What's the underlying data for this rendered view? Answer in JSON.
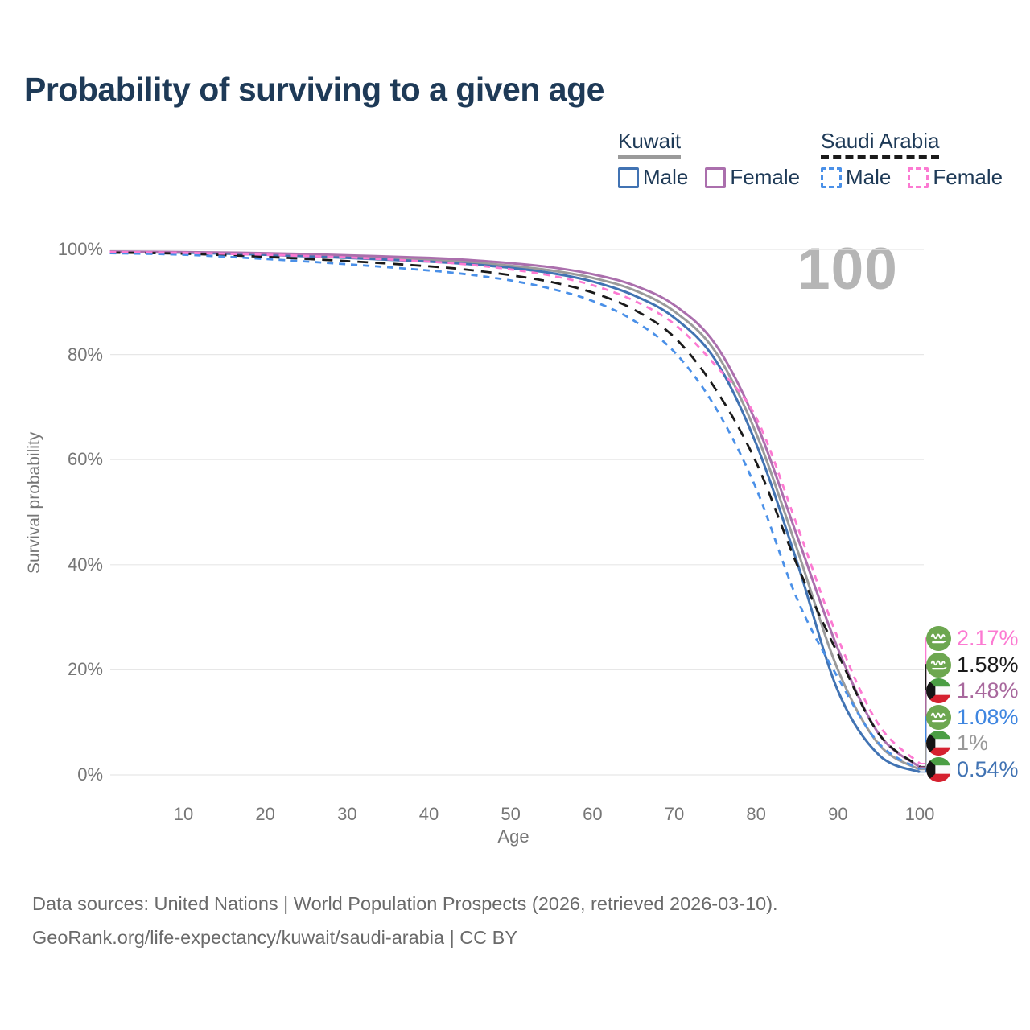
{
  "title": "Probability of surviving to a given age",
  "watermark_age": "100",
  "legend": {
    "groups": [
      {
        "label": "Kuwait",
        "line_style": "solid",
        "line_color": "#9a9a9a",
        "items": [
          {
            "label": "Male",
            "color": "#4173b3"
          },
          {
            "label": "Female",
            "color": "#ab6fad"
          }
        ]
      },
      {
        "label": "Saudi Arabia",
        "line_style": "dashed",
        "line_color": "#1a1a1a",
        "items": [
          {
            "label": "Male",
            "color": "#4a90e8"
          },
          {
            "label": "Female",
            "color": "#fc7ad2"
          }
        ]
      }
    ]
  },
  "chart_data": {
    "type": "line",
    "title": "Probability of surviving to a given age",
    "xlabel": "Age",
    "ylabel": "Survival probability",
    "xlim": [
      1,
      100
    ],
    "ylim": [
      0,
      100
    ],
    "grid": "horizontal",
    "legend_position": "top-right",
    "x_ticks": {
      "values": [
        10,
        20,
        30,
        40,
        50,
        60,
        70,
        80,
        90,
        100
      ],
      "labels": [
        "10",
        "20",
        "30",
        "40",
        "50",
        "60",
        "70",
        "80",
        "90",
        "100"
      ]
    },
    "y_ticks": {
      "values": [
        100,
        80,
        60,
        40,
        20,
        0
      ],
      "labels": [
        "100%",
        "80%",
        "60%",
        "40%",
        "20%",
        "0%"
      ]
    },
    "ages": [
      1,
      10,
      20,
      30,
      40,
      45,
      50,
      55,
      60,
      65,
      70,
      75,
      80,
      85,
      90,
      95,
      100
    ],
    "series": [
      {
        "name": "Kuwait",
        "country": "Kuwait",
        "sex": "Both",
        "color": "#9b9b9b",
        "dash": "solid",
        "end_label": "1%",
        "values": [
          99.55,
          99.45,
          99.15,
          98.65,
          98.0,
          97.6,
          96.9,
          96.0,
          94.6,
          92.3,
          88.2,
          80.6,
          65.0,
          43.0,
          20.0,
          5.8,
          1.0
        ]
      },
      {
        "name": "Kuwait Male",
        "country": "Kuwait",
        "sex": "Male",
        "color": "#4173b3",
        "dash": "solid",
        "end_label": "0.54%",
        "values": [
          99.5,
          99.4,
          99.0,
          98.4,
          97.7,
          97.2,
          96.5,
          95.5,
          93.9,
          91.3,
          87.0,
          79.0,
          63.0,
          40.5,
          16.0,
          3.8,
          0.54
        ]
      },
      {
        "name": "Kuwait Female",
        "country": "Kuwait",
        "sex": "Female",
        "color": "#ab6fad",
        "dash": "solid",
        "end_label": "1.48%",
        "values": [
          99.6,
          99.5,
          99.3,
          98.9,
          98.4,
          98.0,
          97.4,
          96.6,
          95.3,
          93.2,
          89.4,
          82.0,
          67.0,
          45.5,
          24.0,
          7.8,
          1.48
        ]
      },
      {
        "name": "Saudi Arabia",
        "country": "Saudi Arabia",
        "sex": "Both",
        "color": "#1a1a1a",
        "dash": "dashed",
        "end_label": "1.58%",
        "values": [
          99.4,
          99.2,
          98.6,
          97.8,
          96.8,
          96.1,
          95.1,
          93.8,
          91.8,
          88.6,
          83.3,
          73.5,
          59.5,
          40.0,
          23.0,
          7.8,
          1.58
        ]
      },
      {
        "name": "Saudi Arabia Male",
        "country": "Saudi Arabia",
        "sex": "Male",
        "color": "#4a90e8",
        "dash": "dashed",
        "end_label": "1.08%",
        "values": [
          99.3,
          99.0,
          98.2,
          97.2,
          96.0,
          95.2,
          94.1,
          92.5,
          90.2,
          86.5,
          80.5,
          70.0,
          54.5,
          33.5,
          18.5,
          6.0,
          1.08
        ]
      },
      {
        "name": "Saudi Arabia Female",
        "country": "Saudi Arabia",
        "sex": "Female",
        "color": "#fc7ad2",
        "dash": "dashed",
        "end_label": "2.17%",
        "values": [
          99.5,
          99.35,
          99.0,
          98.5,
          97.7,
          97.1,
          96.2,
          95.0,
          93.2,
          90.3,
          85.8,
          78.0,
          68.0,
          47.5,
          26.0,
          9.5,
          2.17
        ]
      }
    ]
  },
  "end_labels": [
    {
      "value": "2.17%",
      "color": "#fc7ad2",
      "flag": "saudi-arabia",
      "series": "Saudi Arabia Female"
    },
    {
      "value": "1.58%",
      "color": "#1a1a1a",
      "flag": "saudi-arabia",
      "series": "Saudi Arabia"
    },
    {
      "value": "1.48%",
      "color": "#a8689d",
      "flag": "kuwait",
      "series": "Kuwait Female"
    },
    {
      "value": "1.08%",
      "color": "#3f86e0",
      "flag": "saudi-arabia",
      "series": "Saudi Arabia Male"
    },
    {
      "value": "1%",
      "color": "#999999",
      "flag": "kuwait",
      "series": "Kuwait"
    },
    {
      "value": "0.54%",
      "color": "#4173b3",
      "flag": "kuwait",
      "series": "Kuwait Male"
    }
  ],
  "footer": {
    "line1": "Data sources: United Nations | World Population Prospects (2026, retrieved 2026-03-10).",
    "line2": "GeoRank.org/life-expectancy/kuwait/saudi-arabia | CC BY"
  }
}
